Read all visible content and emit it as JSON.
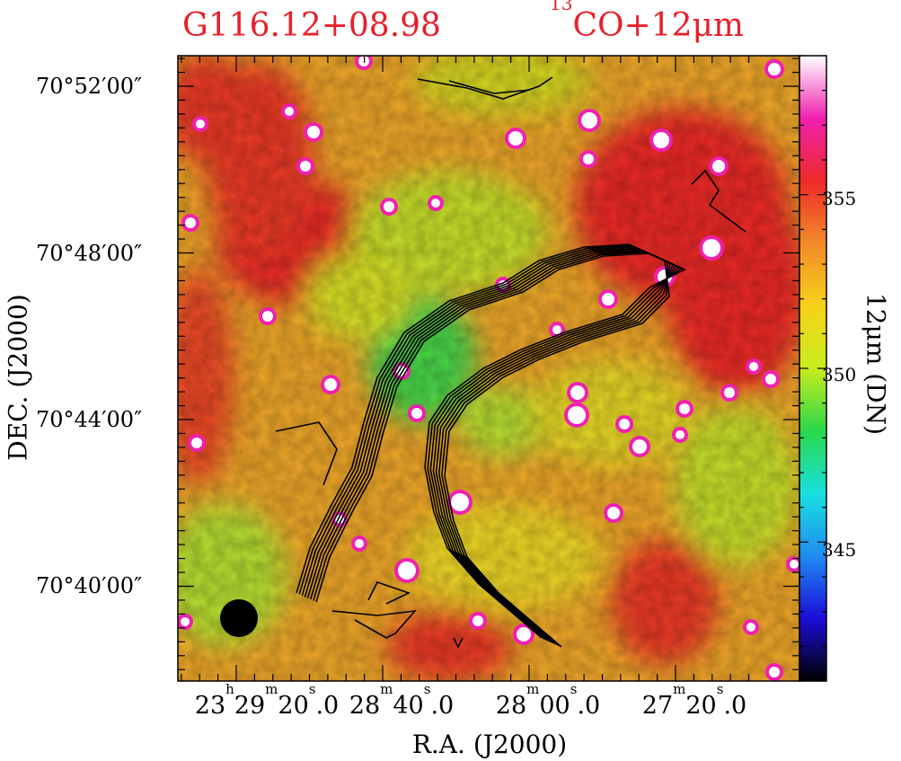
{
  "chart_data": {
    "type": "heatmap",
    "title_left": "G116.12+08.98",
    "title_right_sup": "13",
    "title_right_main": "CO+12μm",
    "xlabel": "R.A. (J2000)",
    "ylabel": "DEC. (J2000)",
    "colorbar_label": "12μm (DN)",
    "xticks": [
      {
        "h": "23",
        "hu": "h",
        "m": "29",
        "mu": "m",
        "s": "20",
        "su": "s",
        "frac": ".0",
        "value_sec": 84560
      },
      {
        "m": "28",
        "mu": "m",
        "s": "40",
        "su": "s",
        "frac": ".0",
        "value_sec": 84520
      },
      {
        "m": "28",
        "mu": "m",
        "s": "00",
        "su": "s",
        "frac": ".0",
        "value_sec": 84480
      },
      {
        "m": "27",
        "mu": "m",
        "s": "20",
        "su": "s",
        "frac": ".0",
        "value_sec": 84440
      }
    ],
    "yticks": [
      {
        "label": "70°52′00″",
        "value_arcmin": 52
      },
      {
        "label": "70°48′00″",
        "value_arcmin": 48
      },
      {
        "label": "70°44′00″",
        "value_arcmin": 44
      },
      {
        "label": "70°40′00″",
        "value_arcmin": 40
      }
    ],
    "colorbar_ticks": [
      {
        "label": "355",
        "value": 355
      },
      {
        "label": "350",
        "value": 350
      },
      {
        "label": "345",
        "value": 345
      }
    ],
    "colorbar_range": [
      341,
      359
    ],
    "colorbar_colors": [
      "#000000",
      "#1a0dd8",
      "#1f8cf0",
      "#18e0e0",
      "#2ad84a",
      "#c8ec1e",
      "#f7d21a",
      "#f28a28",
      "#ee2a28",
      "#f020b0",
      "#ffffff"
    ],
    "contour_levels": 8,
    "beam_marker": "filled-circle",
    "colors": {
      "title": "#e8202a"
    }
  }
}
